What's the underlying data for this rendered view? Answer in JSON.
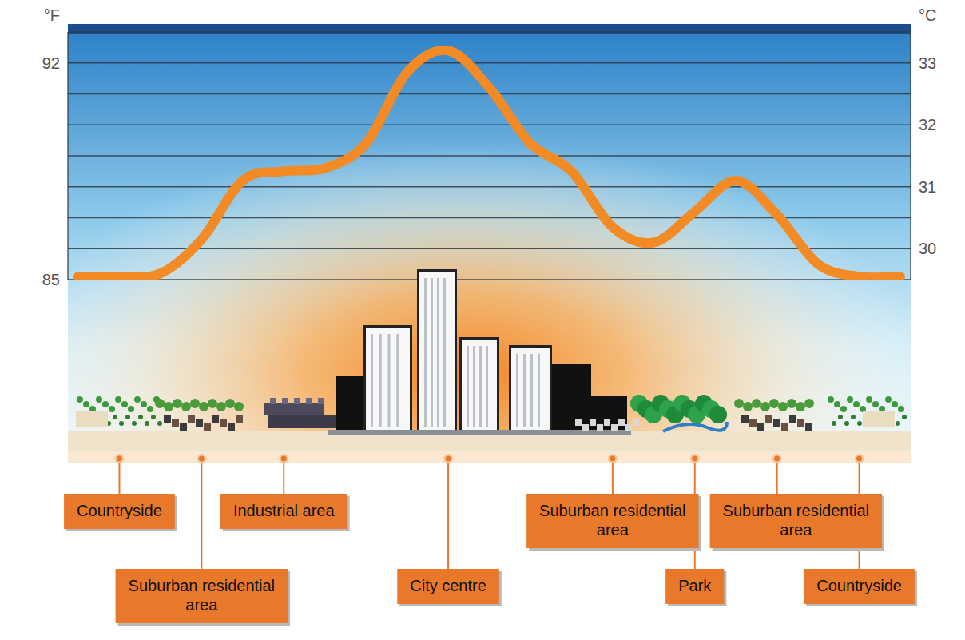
{
  "chart_data": {
    "type": "line",
    "ylabel": "°C",
    "y2label": "°F",
    "categories": [
      null,
      "Countryside",
      null,
      "Suburban residential area",
      null,
      "Industrial area",
      null,
      null,
      null,
      "City centre",
      null,
      null,
      null,
      "Suburban residential area",
      null,
      "Park",
      null,
      "Suburban residential area",
      null,
      "Countryside",
      null
    ],
    "values": [
      29.55,
      29.55,
      29.6,
      30.15,
      31.1,
      31.25,
      31.3,
      31.7,
      32.85,
      33.2,
      32.6,
      31.7,
      31.25,
      30.35,
      30.1,
      30.6,
      31.1,
      30.55,
      29.75,
      29.55,
      29.55
    ],
    "color": "#f28a26",
    "ylim": [
      29.5,
      33.5
    ],
    "yticks": [
      30,
      31,
      32,
      33
    ],
    "y2lim": [
      85,
      93
    ],
    "y2ticks": [
      85,
      92
    ],
    "grid": true
  }
}
